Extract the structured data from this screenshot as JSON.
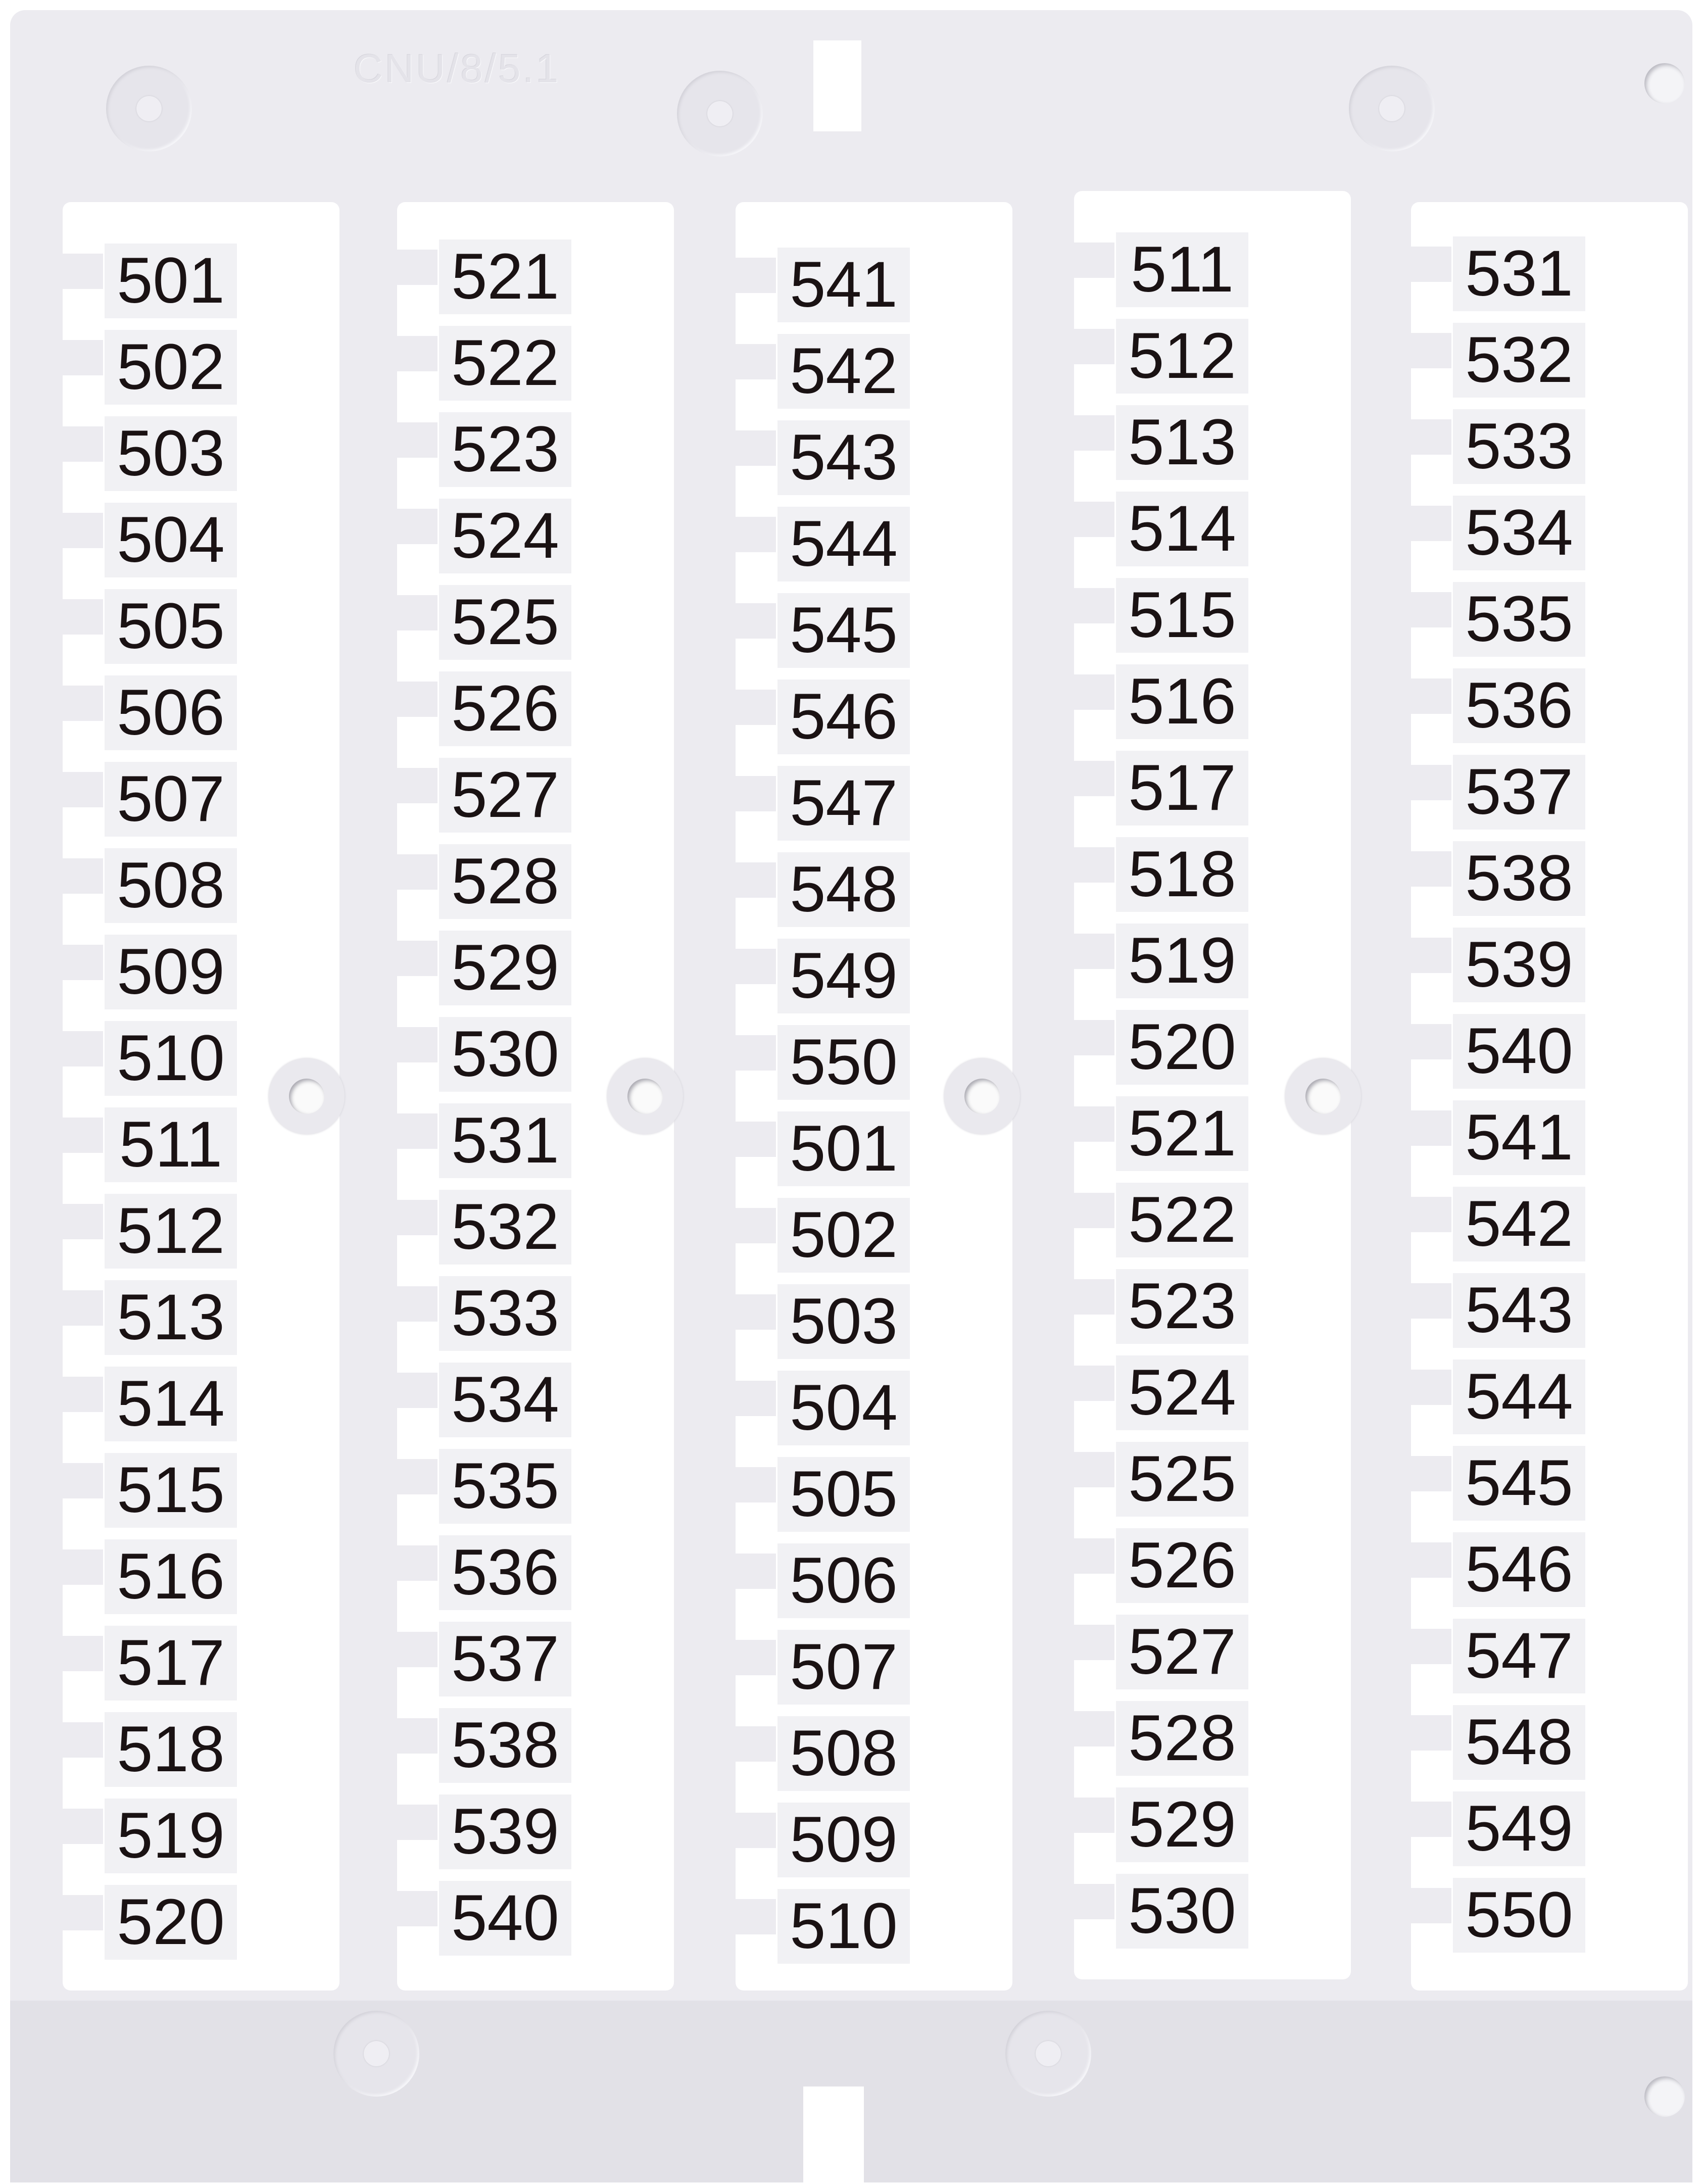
{
  "embossed_text": "CNU/8/5.1",
  "colors": {
    "sheet": "#ecebf0",
    "label_bg": "#f1f1f4",
    "text": "#1a1213"
  },
  "columns": [
    {
      "labels": [
        "501",
        "502",
        "503",
        "504",
        "505",
        "506",
        "507",
        "508",
        "509",
        "510",
        "511",
        "512",
        "513",
        "514",
        "515",
        "516",
        "517",
        "518",
        "519",
        "520"
      ]
    },
    {
      "labels": [
        "521",
        "522",
        "523",
        "524",
        "525",
        "526",
        "527",
        "528",
        "529",
        "530",
        "531",
        "532",
        "533",
        "534",
        "535",
        "536",
        "537",
        "538",
        "539",
        "540"
      ]
    },
    {
      "labels": [
        "541",
        "542",
        "543",
        "544",
        "545",
        "546",
        "547",
        "548",
        "549",
        "550",
        "501",
        "502",
        "503",
        "504",
        "505",
        "506",
        "507",
        "508",
        "509",
        "510"
      ]
    },
    {
      "labels": [
        "511",
        "512",
        "513",
        "514",
        "515",
        "516",
        "517",
        "518",
        "519",
        "520",
        "521",
        "522",
        "523",
        "524",
        "525",
        "526",
        "527",
        "528",
        "529",
        "530"
      ]
    },
    {
      "labels": [
        "531",
        "532",
        "533",
        "534",
        "535",
        "536",
        "537",
        "538",
        "539",
        "540",
        "541",
        "542",
        "543",
        "544",
        "545",
        "546",
        "547",
        "548",
        "549",
        "550"
      ]
    }
  ]
}
